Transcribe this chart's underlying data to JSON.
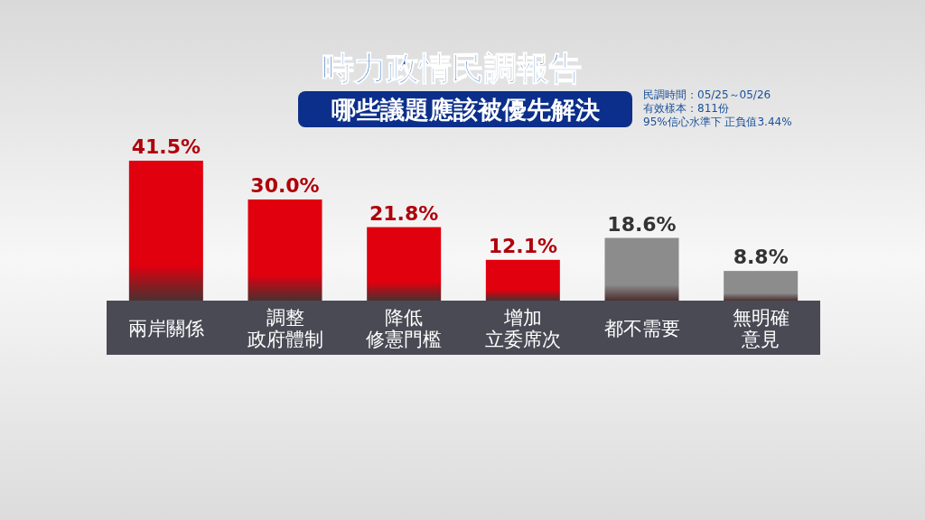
{
  "chart_data": {
    "type": "bar",
    "title": "時力政情民調報告",
    "subtitle": "哪些議題應該被優先解決",
    "categories": [
      "兩岸關係",
      "調整政府體制",
      "降低修憲門檻",
      "增加立委席次",
      "都不需要",
      "無明確意見"
    ],
    "values": [
      41.5,
      30.0,
      21.8,
      12.1,
      18.6,
      8.8
    ],
    "colors": [
      "#e0000e",
      "#e0000e",
      "#e0000e",
      "#e0000e",
      "#8c8c8c",
      "#8c8c8c"
    ],
    "value_labels": [
      "41.5%",
      "30.0%",
      "21.8%",
      "12.1%",
      "18.6%",
      "8.8%"
    ],
    "annotations": [
      "民調時間：05/25～05/26",
      "有效樣本：811份",
      "95%信心水準下 正負值3.44%"
    ]
  }
}
